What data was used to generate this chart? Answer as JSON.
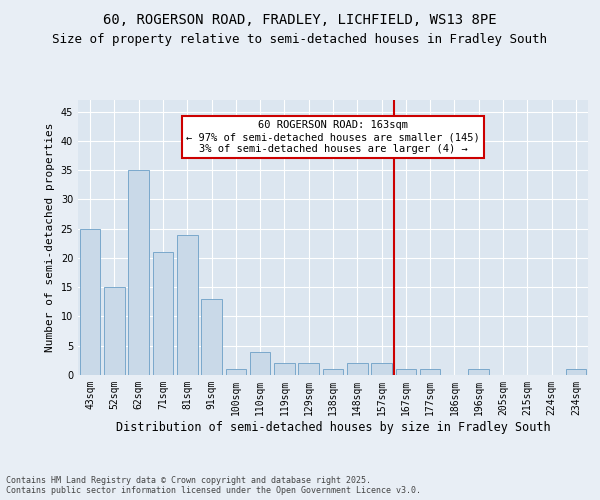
{
  "title1": "60, ROGERSON ROAD, FRADLEY, LICHFIELD, WS13 8PE",
  "title2": "Size of property relative to semi-detached houses in Fradley South",
  "xlabel": "Distribution of semi-detached houses by size in Fradley South",
  "ylabel": "Number of semi-detached properties",
  "footnote": "Contains HM Land Registry data © Crown copyright and database right 2025.\nContains public sector information licensed under the Open Government Licence v3.0.",
  "categories": [
    "43sqm",
    "52sqm",
    "62sqm",
    "71sqm",
    "81sqm",
    "91sqm",
    "100sqm",
    "110sqm",
    "119sqm",
    "129sqm",
    "138sqm",
    "148sqm",
    "157sqm",
    "167sqm",
    "177sqm",
    "186sqm",
    "196sqm",
    "205sqm",
    "215sqm",
    "224sqm",
    "234sqm"
  ],
  "values": [
    25,
    15,
    35,
    21,
    24,
    13,
    1,
    4,
    2,
    2,
    1,
    2,
    2,
    1,
    1,
    0,
    1,
    0,
    0,
    0,
    1
  ],
  "bar_color": "#c9d9e8",
  "bar_edgecolor": "#7aa8cc",
  "vline_color": "#cc0000",
  "annotation_text": "60 ROGERSON ROAD: 163sqm\n← 97% of semi-detached houses are smaller (145)\n3% of semi-detached houses are larger (4) →",
  "annotation_box_color": "#cc0000",
  "ylim": [
    0,
    47
  ],
  "yticks": [
    0,
    5,
    10,
    15,
    20,
    25,
    30,
    35,
    40,
    45
  ],
  "background_color": "#e8eef5",
  "plot_bg_color": "#dce6f0",
  "grid_color": "#ffffff",
  "title_fontsize": 10,
  "subtitle_fontsize": 9,
  "tick_fontsize": 7,
  "ylabel_fontsize": 8,
  "xlabel_fontsize": 8.5,
  "annot_fontsize": 7.5,
  "footnote_fontsize": 6
}
